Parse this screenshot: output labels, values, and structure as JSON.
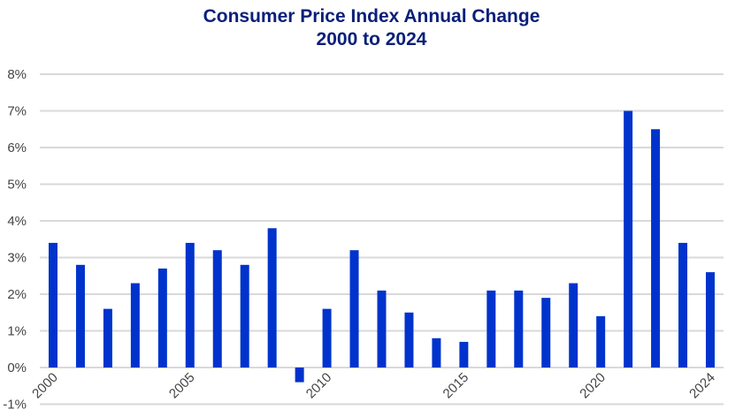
{
  "chart_data": {
    "type": "bar",
    "title": "Consumer Price Index Annual Change",
    "subtitle": "2000 to 2024",
    "xlabel": "",
    "ylabel": "",
    "categories": [
      "2000",
      "2001",
      "2002",
      "2003",
      "2004",
      "2005",
      "2006",
      "2007",
      "2008",
      "2009",
      "2010",
      "2011",
      "2012",
      "2013",
      "2014",
      "2015",
      "2016",
      "2017",
      "2018",
      "2019",
      "2020",
      "2021",
      "2022",
      "2023",
      "2024"
    ],
    "values": [
      3.4,
      2.8,
      1.6,
      2.3,
      2.7,
      3.4,
      3.2,
      2.8,
      3.8,
      -0.4,
      1.6,
      3.2,
      2.1,
      1.5,
      0.8,
      0.7,
      2.1,
      2.1,
      1.9,
      2.3,
      1.4,
      7.0,
      6.5,
      3.4,
      2.6
    ],
    "x_tick_labels": [
      "2000",
      "2005",
      "2010",
      "2015",
      "2020",
      "2024"
    ],
    "y_tick_labels": [
      "-1%",
      "0%",
      "1%",
      "2%",
      "3%",
      "4%",
      "5%",
      "6%",
      "7%",
      "8%"
    ],
    "ylim": [
      -1,
      8
    ],
    "grid": true,
    "bar_color": "#0033cc",
    "title_color": "#0a1f7a"
  }
}
